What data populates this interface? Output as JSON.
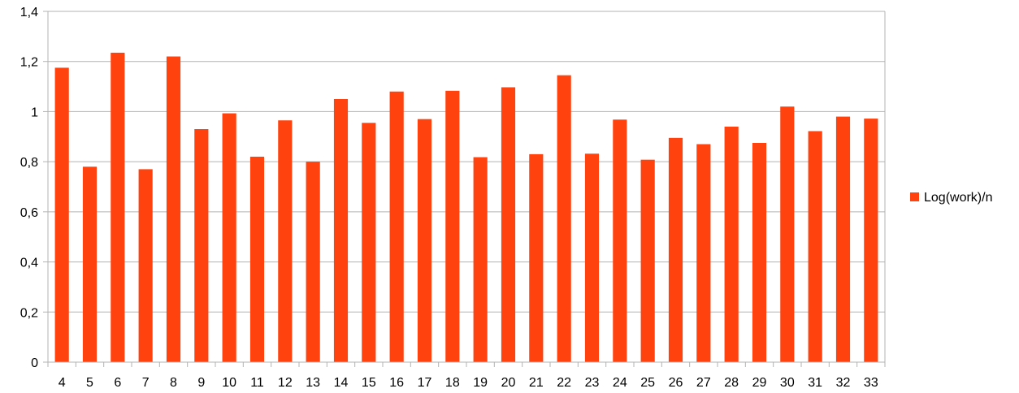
{
  "chart_data": {
    "type": "bar",
    "categories": [
      "4",
      "5",
      "6",
      "7",
      "8",
      "9",
      "10",
      "11",
      "12",
      "13",
      "14",
      "15",
      "16",
      "17",
      "18",
      "19",
      "20",
      "21",
      "22",
      "23",
      "24",
      "25",
      "26",
      "27",
      "28",
      "29",
      "30",
      "31",
      "32",
      "33"
    ],
    "series": [
      {
        "name": "Log(work)/n",
        "color": "#ff420e",
        "values": [
          1.175,
          0.78,
          1.235,
          0.77,
          1.22,
          0.93,
          0.993,
          0.82,
          0.965,
          0.8,
          1.05,
          0.955,
          1.08,
          0.97,
          1.083,
          0.818,
          1.097,
          0.83,
          1.145,
          0.832,
          0.968,
          0.808,
          0.895,
          0.87,
          0.94,
          0.875,
          1.02,
          0.922,
          0.98,
          0.972
        ]
      }
    ],
    "ylim": [
      0,
      1.4
    ],
    "yticks": [
      "0",
      "0,2",
      "0,4",
      "0,6",
      "0,8",
      "1",
      "1,2",
      "1,4"
    ],
    "grid": true,
    "legend_position": "right"
  }
}
